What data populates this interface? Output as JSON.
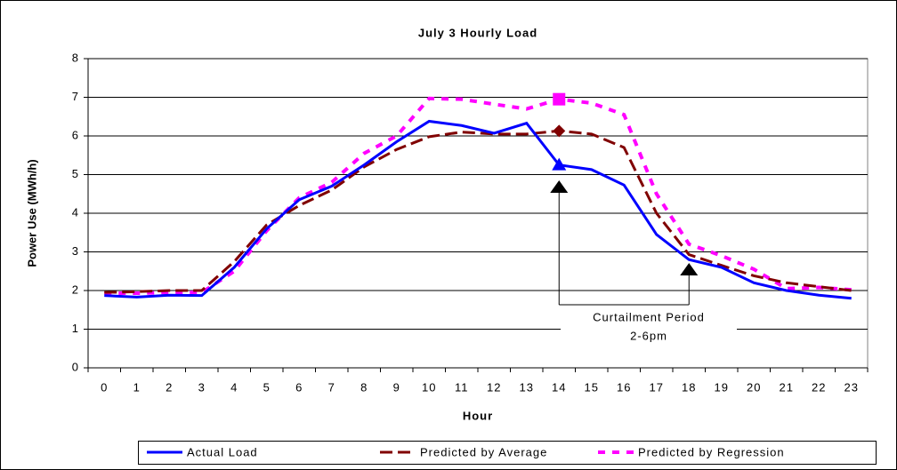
{
  "chart_data": {
    "type": "line",
    "title": "July 3 Hourly Load",
    "x_label": "Hour",
    "y_label": "Power Use (MWh/h)",
    "categories": [
      "0",
      "1",
      "2",
      "3",
      "4",
      "5",
      "6",
      "7",
      "8",
      "9",
      "10",
      "11",
      "12",
      "13",
      "14",
      "15",
      "16",
      "17",
      "18",
      "19",
      "20",
      "21",
      "22",
      "23"
    ],
    "series": [
      {
        "name": "Actual Load",
        "color": "#0000ff",
        "dash": "none",
        "marker": "triangle",
        "marker_index": 14,
        "values": [
          1.87,
          1.83,
          1.88,
          1.87,
          2.6,
          3.6,
          4.35,
          4.7,
          5.25,
          5.85,
          6.38,
          6.27,
          6.07,
          6.33,
          5.25,
          5.13,
          4.73,
          3.45,
          2.8,
          2.6,
          2.2,
          2.0,
          1.88,
          1.8
        ]
      },
      {
        "name": "Predicted by Average",
        "color": "#800000",
        "dash": "14 6",
        "marker": "diamond",
        "marker_index": 14,
        "values": [
          1.95,
          1.97,
          2.0,
          2.0,
          2.75,
          3.7,
          4.2,
          4.6,
          5.2,
          5.65,
          5.98,
          6.1,
          6.05,
          6.05,
          6.13,
          6.05,
          5.7,
          4.0,
          2.93,
          2.65,
          2.38,
          2.2,
          2.1,
          2.0
        ]
      },
      {
        "name": "Predicted by Regression",
        "color": "#ff00ff",
        "dash": "8 8",
        "marker": "square",
        "marker_index": 14,
        "values": [
          1.93,
          1.93,
          1.95,
          1.95,
          2.5,
          3.55,
          4.4,
          4.8,
          5.55,
          6.0,
          6.97,
          6.95,
          6.82,
          6.7,
          6.95,
          6.85,
          6.55,
          4.5,
          3.2,
          2.9,
          2.55,
          2.05,
          2.08,
          2.02
        ]
      }
    ],
    "ylim": [
      0,
      8
    ],
    "yticks": [
      0,
      1,
      2,
      3,
      4,
      5,
      6,
      7,
      8
    ],
    "grid": true,
    "legend": "bottom",
    "annotation": {
      "lines": [
        "Curtailment Period",
        "2-6pm"
      ],
      "from": 14,
      "to": 18
    }
  }
}
